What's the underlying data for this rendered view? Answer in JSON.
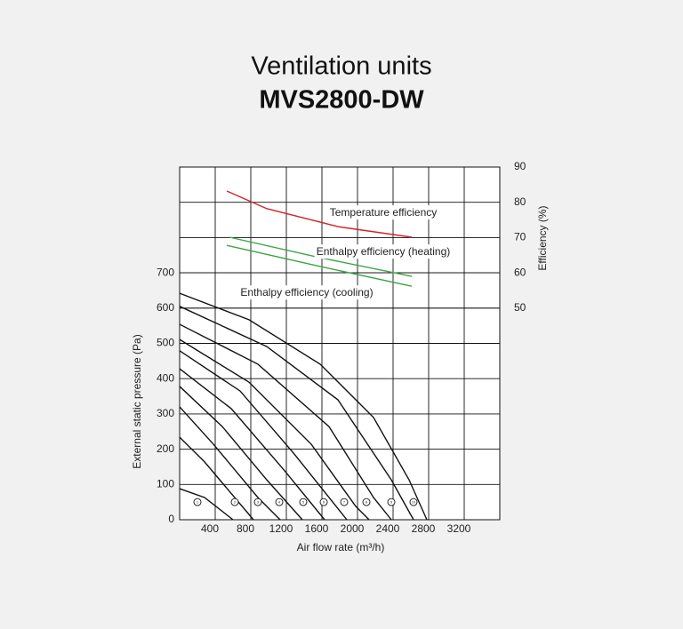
{
  "chart_data": {
    "type": "fan-curve",
    "title": "Ventilation units",
    "subtitle": "MVS2800-DW",
    "x_label": "Air flow rate (m³/h)",
    "y_label": "External static pressure (Pa)",
    "y2_label": "Efficiency (%)",
    "xlim": [
      0,
      3600
    ],
    "xticks": [
      400,
      800,
      1200,
      1600,
      2000,
      2400,
      2800,
      3200
    ],
    "ylim": [
      0,
      1000
    ],
    "yticks": [
      0,
      100,
      200,
      300,
      400,
      500,
      600,
      700
    ],
    "y2lim": [
      -10,
      90
    ],
    "y2ticks": [
      50,
      60,
      70,
      80,
      90
    ],
    "grid": true,
    "series": [
      {
        "color": "#111111",
        "x": [
          0,
          780,
          1580,
          2180,
          2580,
          2780
        ],
        "values": [
          642,
          567,
          441,
          290,
          113,
          0
        ]
      },
      {
        "color": "#111111",
        "x": [
          0,
          980,
          1780,
          2380,
          2630
        ],
        "values": [
          605,
          491,
          340,
          113,
          0
        ]
      },
      {
        "color": "#111111",
        "x": [
          0,
          880,
          1680,
          2180,
          2380
        ],
        "values": [
          554,
          441,
          264,
          63,
          0
        ]
      },
      {
        "color": "#111111",
        "x": [
          0,
          780,
          1480,
          1980,
          2130
        ],
        "values": [
          511,
          390,
          214,
          38,
          0
        ]
      },
      {
        "color": "#111111",
        "x": [
          0,
          680,
          1280,
          1880
        ],
        "values": [
          479,
          365,
          189,
          0
        ]
      },
      {
        "color": "#111111",
        "x": [
          0,
          580,
          1180,
          1630
        ],
        "values": [
          428,
          315,
          139,
          0
        ]
      },
      {
        "color": "#111111",
        "x": [
          0,
          480,
          980,
          1380
        ],
        "values": [
          378,
          264,
          113,
          0
        ]
      },
      {
        "color": "#111111",
        "x": [
          0,
          380,
          880,
          1130
        ],
        "values": [
          320,
          214,
          63,
          0
        ]
      },
      {
        "color": "#111111",
        "x": [
          0,
          280,
          830
        ],
        "values": [
          234,
          164,
          0
        ]
      },
      {
        "color": "#111111",
        "x": [
          0,
          280,
          600
        ],
        "values": [
          88,
          63,
          0
        ]
      },
      {
        "name": "Temperature efficiency",
        "axis": "y2",
        "color": "#d2232a",
        "x": [
          530,
          980,
          1780,
          2610
        ],
        "values": [
          83.2,
          78.2,
          73.1,
          70.1
        ]
      },
      {
        "name": "Enthalpy efficiency (heating)",
        "axis": "y2",
        "color": "#3aa545",
        "x": [
          560,
          1580,
          2610
        ],
        "values": [
          70.1,
          64.3,
          59.0
        ]
      },
      {
        "name": "Enthalpy efficiency (cooling)",
        "axis": "y2",
        "color": "#3aa545",
        "x": [
          530,
          1580,
          2610
        ],
        "values": [
          67.8,
          61.8,
          56.2
        ]
      }
    ],
    "speed_markers": {
      "labels": [
        "1",
        "2",
        "3",
        "4",
        "5",
        "6",
        "7",
        "8",
        "9",
        "10"
      ],
      "x": [
        200,
        620,
        880,
        1120,
        1390,
        1620,
        1850,
        2100,
        2380,
        2630
      ],
      "values": [
        50,
        50,
        50,
        50,
        50,
        50,
        50,
        50,
        50,
        50
      ]
    }
  }
}
